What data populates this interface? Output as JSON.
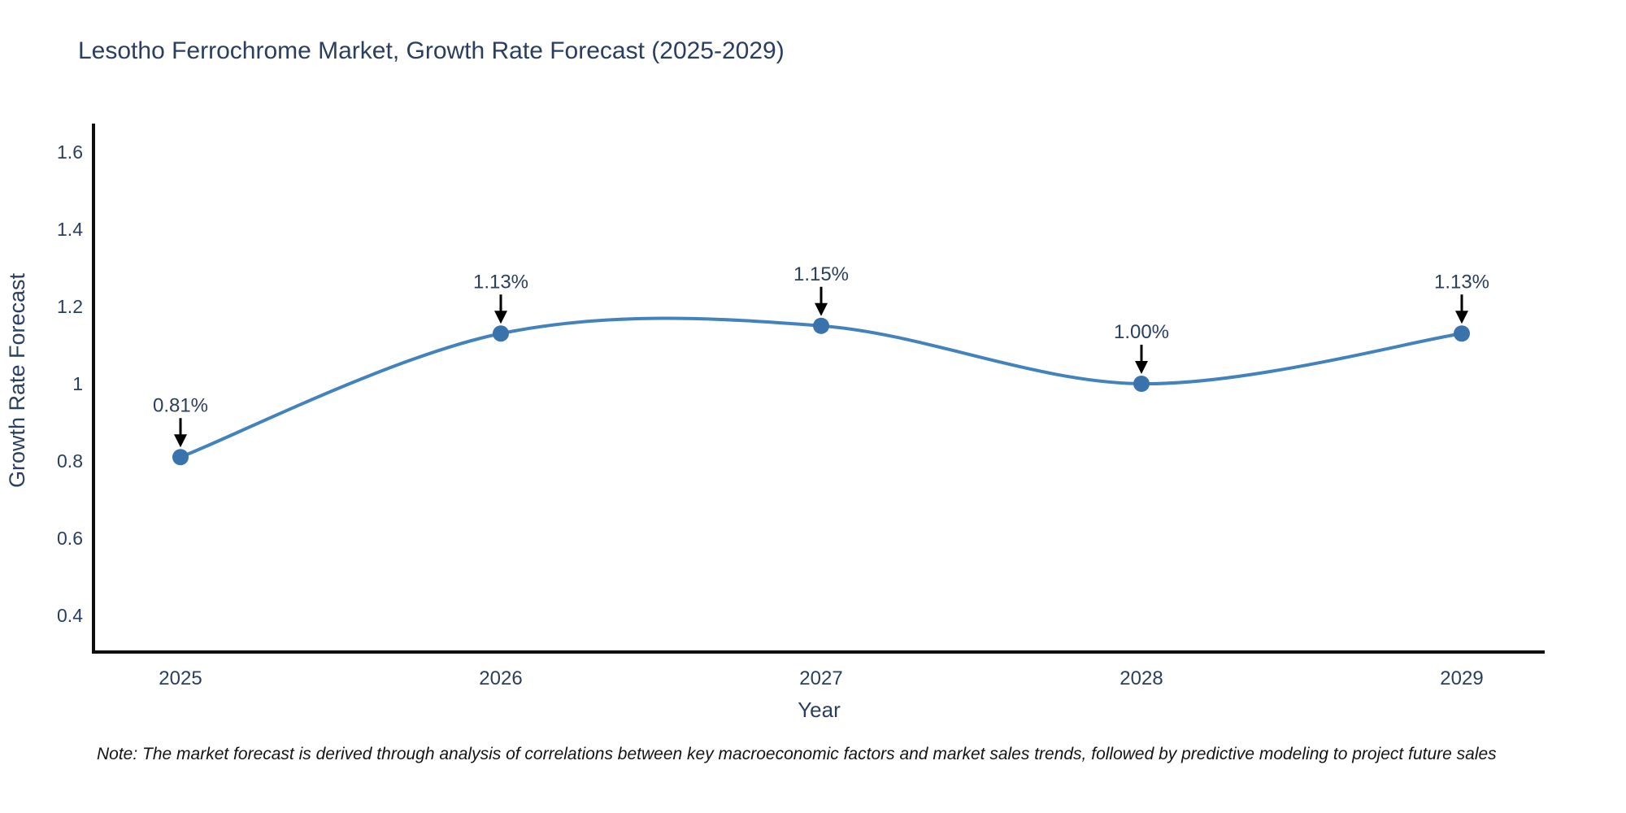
{
  "title": "Lesotho Ferrochrome Market, Growth Rate Forecast (2025-2029)",
  "note": "Note: The market forecast is derived through analysis of correlations between key macroeconomic factors and market sales trends, followed by predictive modeling to project future sales",
  "chart_data": {
    "type": "line",
    "line_shape": "spline",
    "title": "Lesotho Ferrochrome Market, Growth Rate Forecast (2025-2029)",
    "x": [
      2025,
      2026,
      2027,
      2028,
      2029
    ],
    "series": [
      {
        "name": "Growth Rate Forecast",
        "values": [
          0.81,
          1.13,
          1.15,
          1.0,
          1.13
        ]
      }
    ],
    "point_labels": [
      "0.81%",
      "1.13%",
      "1.15%",
      "1.00%",
      "1.13%"
    ],
    "xlabel": "Year",
    "ylabel": "Growth Rate Forecast",
    "yticks": [
      0.4,
      0.6,
      0.8,
      1,
      1.2,
      1.4,
      1.6
    ],
    "ylim": [
      0.3,
      1.67
    ],
    "grid": false,
    "legend": false,
    "colors": {
      "line": "#4282bd",
      "marker": "#3a73ac",
      "axis": "#0f0f0f",
      "text": "#2a3f5f",
      "annotation_text": "#2a3f5f",
      "annotation_arrow": "#000000",
      "background": "#ffffff"
    }
  }
}
